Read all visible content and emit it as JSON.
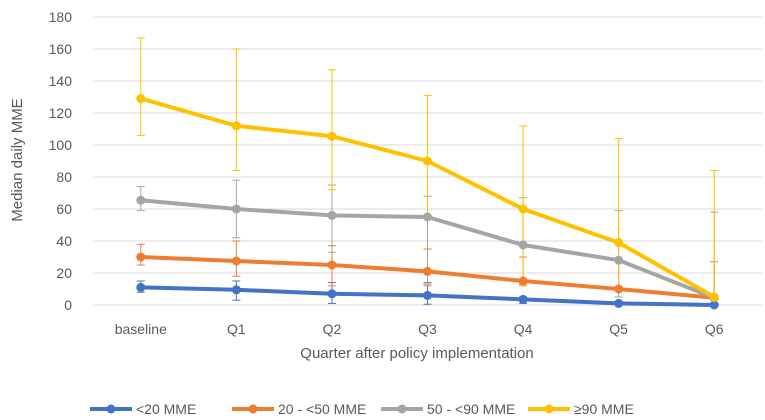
{
  "chart_data": {
    "type": "line",
    "title": "",
    "xlabel": "Quarter after policy implementation",
    "ylabel": "Median daily MME",
    "categories": [
      "baseline",
      "Q1",
      "Q2",
      "Q3",
      "Q4",
      "Q5",
      "Q6"
    ],
    "ylim": [
      0,
      180
    ],
    "yticks": [
      0,
      20,
      40,
      60,
      80,
      100,
      120,
      140,
      160,
      180
    ],
    "grid": true,
    "legend_position": "bottom",
    "series": [
      {
        "name": "<20 MME",
        "color": "#4472C4",
        "values": [
          11,
          9.5,
          7,
          6,
          3.5,
          1,
          0
        ],
        "err_low": [
          8,
          3,
          1,
          0.5,
          1,
          0,
          0
        ],
        "err_high": [
          15,
          15,
          14,
          14,
          5,
          2,
          0
        ]
      },
      {
        "name": "20 - <50 MME",
        "color": "#ED7D31",
        "values": [
          30,
          27.5,
          25,
          21,
          15,
          10,
          4.5
        ],
        "err_low": [
          25,
          18,
          12,
          12,
          12,
          5,
          0
        ],
        "err_high": [
          38,
          40,
          37,
          35,
          30,
          27,
          27
        ]
      },
      {
        "name": "50 - <90 MME",
        "color": "#A5A5A5",
        "values": [
          65.5,
          60,
          56,
          55,
          37.5,
          28,
          4.5
        ],
        "err_low": [
          59,
          42,
          33,
          13,
          13,
          5,
          0
        ],
        "err_high": [
          74,
          78,
          75,
          68,
          67,
          59,
          58
        ]
      },
      {
        "name": "≥90 MME",
        "color": "#FFC000",
        "values": [
          129,
          112,
          105.5,
          90,
          60,
          39,
          5
        ],
        "err_low": [
          106,
          84,
          72,
          55,
          12,
          10,
          4
        ],
        "err_high": [
          167,
          160,
          147,
          131,
          112,
          104,
          84
        ]
      }
    ]
  }
}
